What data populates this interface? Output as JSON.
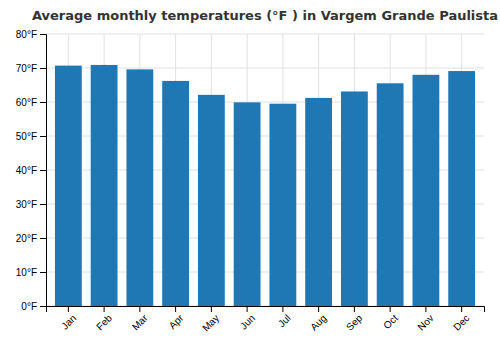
{
  "chart_data": {
    "type": "bar",
    "title": "Average monthly temperatures (°F ) in Vargem Grande Paulista",
    "categories": [
      "Jan",
      "Feb",
      "Mar",
      "Apr",
      "May",
      "Jun",
      "Jul",
      "Aug",
      "Sep",
      "Oct",
      "Nov",
      "Dec"
    ],
    "values": [
      70.7,
      70.9,
      69.6,
      66.2,
      62.1,
      59.9,
      59.5,
      61.2,
      63.1,
      65.5,
      68.0,
      69.1
    ],
    "ylim": [
      0,
      80
    ],
    "yticks": [
      {
        "value": 0,
        "label": "0°F"
      },
      {
        "value": 10,
        "label": "10°F"
      },
      {
        "value": 20,
        "label": "20°F"
      },
      {
        "value": 30,
        "label": "30°F"
      },
      {
        "value": 40,
        "label": "40°F"
      },
      {
        "value": 50,
        "label": "50°F"
      },
      {
        "value": 60,
        "label": "60°F"
      },
      {
        "value": 70,
        "label": "70°F"
      },
      {
        "value": 80,
        "label": "80°F"
      }
    ],
    "grid": true
  }
}
